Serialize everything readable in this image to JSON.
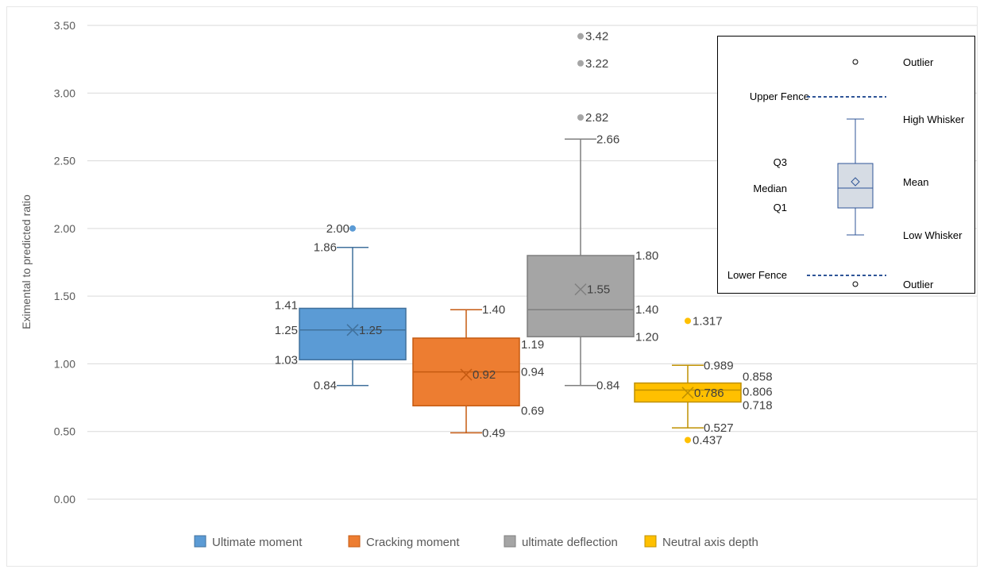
{
  "chart_data": {
    "type": "box",
    "ylabel": "Eximental to predicted ratio",
    "ylim": [
      0,
      3.5
    ],
    "yticks": [
      "0.00",
      "0.50",
      "1.00",
      "1.50",
      "2.00",
      "2.50",
      "3.00",
      "3.50"
    ],
    "grid": true,
    "legend_position": "bottom",
    "series": [
      {
        "name": "Ultimate moment",
        "color": "#5b9bd5",
        "stroke": "#41719c",
        "min": 0.84,
        "q1": 1.03,
        "median": 1.25,
        "q3": 1.41,
        "max": 1.86,
        "mean": 1.25,
        "outliers": [
          2.0
        ],
        "labels": {
          "min": "0.84",
          "q1": "1.03",
          "median": "1.25",
          "q3": "1.41",
          "max": "1.86",
          "mean": "1.25",
          "outliers": [
            "2.00"
          ]
        }
      },
      {
        "name": "Cracking moment",
        "color": "#ed7d31",
        "stroke": "#c55a11",
        "min": 0.49,
        "q1": 0.69,
        "median": 0.94,
        "q3": 1.19,
        "max": 1.4,
        "mean": 0.92,
        "outliers": [],
        "labels": {
          "min": "0.49",
          "q1": "0.69",
          "median": "0.94",
          "q3": "1.19",
          "max": "1.40",
          "mean": "0.92",
          "outliers": []
        }
      },
      {
        "name": "ultimate deflection",
        "color": "#a5a5a5",
        "stroke": "#7f7f7f",
        "min": 0.84,
        "q1": 1.2,
        "median": 1.4,
        "q3": 1.8,
        "max": 2.66,
        "mean": 1.55,
        "outliers": [
          2.82,
          3.22,
          3.42
        ],
        "labels": {
          "min": "0.84",
          "q1": "1.20",
          "median": "1.40",
          "q3": "1.80",
          "max": "2.66",
          "mean": "1.55",
          "outliers": [
            "2.82",
            "3.22",
            "3.42"
          ]
        }
      },
      {
        "name": "Neutral axis depth",
        "color": "#ffc000",
        "stroke": "#bf9000",
        "min": 0.527,
        "q1": 0.718,
        "median": 0.806,
        "q3": 0.858,
        "max": 0.989,
        "mean": 0.786,
        "outliers": [
          1.317,
          0.437
        ],
        "labels": {
          "min": "0.527",
          "q1": "0.718",
          "median": "0.806",
          "q3": "0.858",
          "max": "0.989",
          "mean": "0.786",
          "outliers": [
            "1.317",
            "0.437"
          ]
        }
      }
    ]
  },
  "key": {
    "outlier": "Outlier",
    "upper_fence": "Upper Fence",
    "high_whisker": "High Whisker",
    "q3": "Q3",
    "mean": "Mean",
    "median": "Median",
    "q1": "Q1",
    "low_whisker": "Low Whisker",
    "lower_fence": "Lower Fence"
  }
}
